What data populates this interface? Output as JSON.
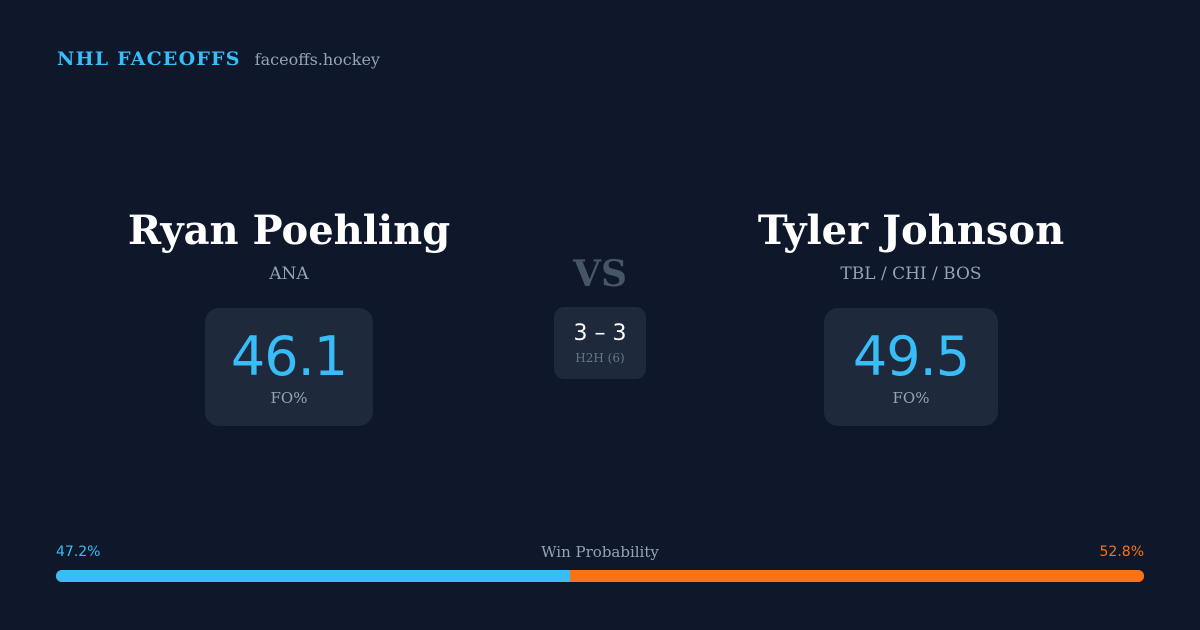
{
  "brand": {
    "name": "NHL FACEOFFS",
    "url": "faceoffs.hockey"
  },
  "players": {
    "left": {
      "name": "Ryan Poehling",
      "team": "ANA",
      "fo_pct": "46.1",
      "fo_label": "FO%"
    },
    "right": {
      "name": "Tyler Johnson",
      "team": "TBL / CHI / BOS",
      "fo_pct": "49.5",
      "fo_label": "FO%"
    }
  },
  "matchup": {
    "vs": "VS",
    "h2h_score": "3 – 3",
    "h2h_label": "H2H (6)"
  },
  "win_probability": {
    "title": "Win Probability",
    "left_label": "47.2%",
    "right_label": "52.8%",
    "left_fraction": 0.472,
    "right_fraction": 0.528
  },
  "colors": {
    "background": "#0f172a",
    "accent_left": "#38bdf8",
    "accent_right": "#f97316",
    "card": "#1e293b"
  }
}
